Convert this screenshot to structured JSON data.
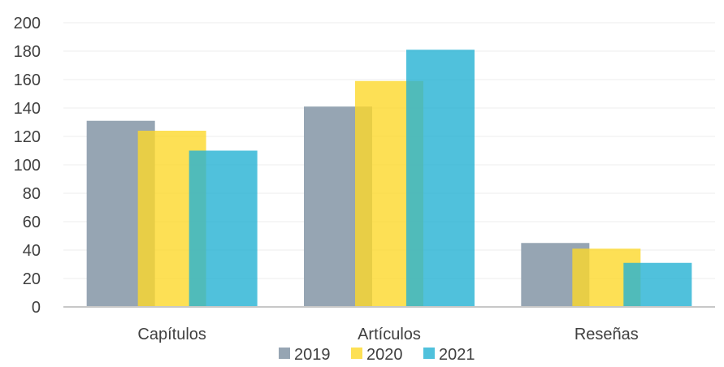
{
  "chart_data": {
    "type": "bar",
    "categories": [
      "Capítulos",
      "Artículos",
      "Reseñas"
    ],
    "series": [
      {
        "name": "2019",
        "values": [
          131,
          141,
          45
        ],
        "color": "#96a5b3",
        "opacity": 1.0
      },
      {
        "name": "2020",
        "values": [
          124,
          159,
          41
        ],
        "color": "#fcd82a",
        "opacity": 0.8
      },
      {
        "name": "2021",
        "values": [
          110,
          181,
          31
        ],
        "color": "#24b1d3",
        "opacity": 0.8
      }
    ],
    "ylim": [
      0,
      200
    ],
    "yticks": [
      0,
      20,
      40,
      60,
      80,
      100,
      120,
      140,
      160,
      180,
      200
    ],
    "grid": true,
    "legend": "bottom",
    "axis_color": "#c8c8c8",
    "grid_color": "#ececec"
  }
}
